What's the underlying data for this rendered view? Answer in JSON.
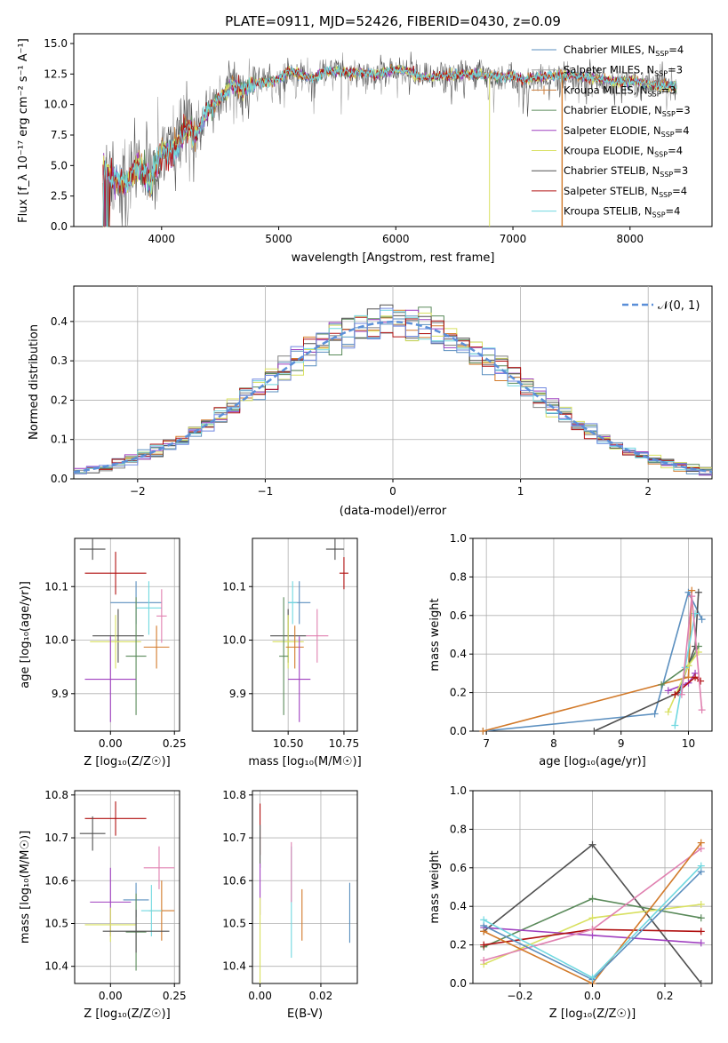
{
  "figure": {
    "title": "PLATE=0911, MJD=52426, FIBERID=0430, z=0.09"
  },
  "spectrum": {
    "xlabel": "wavelength [Angstrom, rest frame]",
    "ylabel": "Flux [f_λ 10⁻¹⁷ erg cm⁻² s⁻¹ A⁻¹]",
    "xlim": [
      3250,
      8700
    ],
    "ylim": [
      0,
      15.8
    ],
    "xticks": [
      4000,
      5000,
      6000,
      7000,
      8000
    ],
    "yticks": [
      "0.0",
      "2.5",
      "5.0",
      "7.5",
      "10.0",
      "12.5",
      "15.0"
    ],
    "legend": [
      {
        "label": "Chabrier MILES, N_SSP=4",
        "color": "#5b8fbf"
      },
      {
        "label": "Salpeter MILES, N_SSP=3",
        "color": "#a0a0a0"
      },
      {
        "label": "Kroupa MILES, N_SSP=3",
        "color": "#c87e3c"
      },
      {
        "label": "Chabrier ELODIE, N_SSP=3",
        "color": "#5a8a5a"
      },
      {
        "label": "Salpeter ELODIE, N_SSP=4",
        "color": "#a040c0"
      },
      {
        "label": "Kroupa ELODIE, N_SSP=4",
        "color": "#d8e060"
      },
      {
        "label": "Chabrier STELIB, N_SSP=3",
        "color": "#505050"
      },
      {
        "label": "Salpeter STELIB, N_SSP=4",
        "color": "#b01010"
      },
      {
        "label": "Kroupa STELIB, N_SSP=4",
        "color": "#70d8e0"
      }
    ],
    "shape": [
      [
        3500,
        4.6
      ],
      [
        3600,
        3.8
      ],
      [
        3700,
        3.5
      ],
      [
        3800,
        5.2
      ],
      [
        3900,
        3.5
      ],
      [
        4000,
        6.2
      ],
      [
        4100,
        6.0
      ],
      [
        4200,
        8.0
      ],
      [
        4300,
        7.6
      ],
      [
        4400,
        9.6
      ],
      [
        4500,
        10.6
      ],
      [
        4600,
        11.6
      ],
      [
        4700,
        11.2
      ],
      [
        4800,
        11.8
      ],
      [
        4900,
        11.8
      ],
      [
        5000,
        12.0
      ],
      [
        5100,
        12.8
      ],
      [
        5200,
        12.4
      ],
      [
        5300,
        12.2
      ],
      [
        5400,
        12.7
      ],
      [
        5500,
        12.8
      ],
      [
        5600,
        12.6
      ],
      [
        5700,
        12.6
      ],
      [
        5800,
        12.5
      ],
      [
        5900,
        12.6
      ],
      [
        6000,
        12.9
      ],
      [
        6100,
        12.8
      ],
      [
        6200,
        12.3
      ],
      [
        6300,
        12.2
      ],
      [
        6400,
        12.4
      ],
      [
        6500,
        12.4
      ],
      [
        6600,
        12.5
      ],
      [
        6700,
        12.5
      ],
      [
        6800,
        12.3
      ],
      [
        6900,
        12.2
      ],
      [
        7000,
        12.4
      ],
      [
        7100,
        12.0
      ],
      [
        7200,
        12.2
      ],
      [
        7300,
        12.3
      ],
      [
        7400,
        12.4
      ],
      [
        7500,
        12.4
      ],
      [
        7600,
        12.3
      ],
      [
        7700,
        12.2
      ],
      [
        7800,
        12.0
      ],
      [
        7900,
        11.8
      ],
      [
        8000,
        12.0
      ],
      [
        8100,
        11.8
      ],
      [
        8200,
        11.6
      ],
      [
        8300,
        11.5
      ],
      [
        8400,
        11.5
      ]
    ]
  },
  "residuals": {
    "xlabel": "(data-model)/error",
    "ylabel": "Normed distribution",
    "xlim": [
      -2.5,
      2.5
    ],
    "ylim": [
      0,
      0.49
    ],
    "xticks": [
      "−2",
      "−1",
      "0",
      "1",
      "2"
    ],
    "yticks": [
      "0.0",
      "0.1",
      "0.2",
      "0.3",
      "0.4"
    ],
    "legend_label": "𝒩(0, 1)",
    "colors": [
      "#5b8fbf",
      "#808080",
      "#d27a2a",
      "#5a8a5a",
      "#a040c0",
      "#d8e060",
      "#505050",
      "#b01010",
      "#70d8e0",
      "#7088e0"
    ]
  },
  "panels": {
    "age_vs_z": {
      "ylabel": "age  [log₁₀(age/yr)]",
      "xlabel": "Z [log₁₀(Z/Z☉)]",
      "xticks": [
        "0.00",
        "0.25"
      ],
      "yticks": [
        "9.9",
        "10.0",
        "10.1"
      ],
      "xlim": [
        -0.14,
        0.27
      ],
      "ylim": [
        9.83,
        10.19
      ],
      "points": [
        {
          "x": -0.07,
          "y": 10.17,
          "xe": 0.05,
          "ye": 0.02,
          "c": "#505050"
        },
        {
          "x": 0.02,
          "y": 10.125,
          "xe": 0.12,
          "ye": 0.04,
          "c": "#b01010"
        },
        {
          "x": 0.1,
          "y": 10.07,
          "xe": 0.1,
          "ye": 0.04,
          "c": "#5b8fbf"
        },
        {
          "x": 0.15,
          "y": 10.06,
          "xe": 0.05,
          "ye": 0.05,
          "c": "#70d8e0"
        },
        {
          "x": 0.2,
          "y": 10.045,
          "xe": 0.02,
          "ye": 0.05,
          "c": "#e080b0"
        },
        {
          "x": 0.03,
          "y": 10.008,
          "xe": 0.1,
          "ye": 0.05,
          "c": "#505050"
        },
        {
          "x": 0.02,
          "y": 9.997,
          "xe": 0.1,
          "ye": 0.05,
          "c": "#d8e060"
        },
        {
          "x": 0.18,
          "y": 9.987,
          "xe": 0.05,
          "ye": 0.04,
          "c": "#d27a2a"
        },
        {
          "x": 0.1,
          "y": 9.97,
          "xe": 0.04,
          "ye": 0.11,
          "c": "#5a8a5a"
        },
        {
          "x": 0.0,
          "y": 9.927,
          "xe": 0.1,
          "ye": 0.08,
          "c": "#a040c0"
        }
      ]
    },
    "age_vs_mass": {
      "xlabel": "mass [log₁₀(M/M☉)]",
      "xticks": [
        "10.50",
        "10.75"
      ],
      "yticks": [
        "9.9",
        "10.0",
        "10.1"
      ],
      "xlim": [
        10.34,
        10.81
      ],
      "ylim": [
        9.83,
        10.19
      ],
      "points": [
        {
          "x": 10.71,
          "y": 10.17,
          "xe": 0.04,
          "ye": 0.02,
          "c": "#505050"
        },
        {
          "x": 10.75,
          "y": 10.125,
          "xe": 0.02,
          "ye": 0.03,
          "c": "#b01010"
        },
        {
          "x": 10.55,
          "y": 10.07,
          "xe": 0.05,
          "ye": 0.04,
          "c": "#5b8fbf"
        },
        {
          "x": 10.52,
          "y": 10.07,
          "xe": 0.02,
          "ye": 0.04,
          "c": "#70d8e0"
        },
        {
          "x": 10.63,
          "y": 10.008,
          "xe": 0.05,
          "ye": 0.05,
          "c": "#e080b0"
        },
        {
          "x": 10.5,
          "y": 10.008,
          "xe": 0.08,
          "ye": 0.05,
          "c": "#505050"
        },
        {
          "x": 10.5,
          "y": 9.997,
          "xe": 0.07,
          "ye": 0.05,
          "c": "#d8e060"
        },
        {
          "x": 10.53,
          "y": 9.987,
          "xe": 0.04,
          "ye": 0.04,
          "c": "#d27a2a"
        },
        {
          "x": 10.48,
          "y": 9.97,
          "xe": 0.02,
          "ye": 0.11,
          "c": "#5a8a5a"
        },
        {
          "x": 10.55,
          "y": 9.927,
          "xe": 0.05,
          "ye": 0.08,
          "c": "#a040c0"
        }
      ]
    },
    "weight_vs_age": {
      "ylabel": "mass weight",
      "xlabel": "age  [log₁₀(age/yr)]",
      "xticks": [
        "7",
        "8",
        "9",
        "10"
      ],
      "yticks": [
        "0.0",
        "0.2",
        "0.4",
        "0.6",
        "0.8",
        "1.0"
      ],
      "xlim": [
        6.8,
        10.35
      ],
      "ylim": [
        0,
        1
      ],
      "series": [
        {
          "c": "#5b8fbf",
          "pts": [
            [
              6.95,
              0.0
            ],
            [
              9.5,
              0.09
            ],
            [
              10.0,
              0.72
            ],
            [
              10.2,
              0.58
            ]
          ]
        },
        {
          "c": "#d27a2a",
          "pts": [
            [
              6.95,
              0.0
            ],
            [
              10.0,
              0.28
            ],
            [
              10.05,
              0.73
            ]
          ]
        },
        {
          "c": "#505050",
          "pts": [
            [
              8.6,
              0.0
            ],
            [
              9.85,
              0.2
            ],
            [
              10.1,
              0.44
            ],
            [
              10.15,
              0.72
            ]
          ]
        },
        {
          "c": "#5a8a5a",
          "pts": [
            [
              9.6,
              0.24
            ],
            [
              10.0,
              0.34
            ],
            [
              10.15,
              0.44
            ]
          ]
        },
        {
          "c": "#a040c0",
          "pts": [
            [
              9.7,
              0.21
            ],
            [
              10.0,
              0.25
            ],
            [
              10.1,
              0.3
            ]
          ]
        },
        {
          "c": "#d8e060",
          "pts": [
            [
              9.7,
              0.1
            ],
            [
              10.0,
              0.34
            ],
            [
              10.15,
              0.41
            ]
          ]
        },
        {
          "c": "#b01010",
          "pts": [
            [
              9.8,
              0.19
            ],
            [
              10.1,
              0.28
            ],
            [
              10.18,
              0.26
            ]
          ]
        },
        {
          "c": "#70d8e0",
          "pts": [
            [
              9.8,
              0.03
            ],
            [
              9.95,
              0.33
            ],
            [
              10.1,
              0.61
            ]
          ]
        },
        {
          "c": "#e080b0",
          "pts": [
            [
              9.9,
              0.19
            ],
            [
              10.05,
              0.7
            ],
            [
              10.2,
              0.11
            ]
          ]
        }
      ]
    },
    "mass_vs_z": {
      "ylabel": "mass [log₁₀(M/M☉)]",
      "xlabel": "Z [log₁₀(Z/Z☉)]",
      "xticks": [
        "0.00",
        "0.25"
      ],
      "yticks": [
        "10.4",
        "10.5",
        "10.6",
        "10.7",
        "10.8"
      ],
      "xlim": [
        -0.14,
        0.27
      ],
      "ylim": [
        10.36,
        10.81
      ],
      "points": [
        {
          "x": 0.02,
          "y": 10.745,
          "xe": 0.12,
          "ye": 0.04,
          "c": "#b01010"
        },
        {
          "x": -0.07,
          "y": 10.71,
          "xe": 0.05,
          "ye": 0.04,
          "c": "#505050"
        },
        {
          "x": 0.19,
          "y": 10.63,
          "xe": 0.06,
          "ye": 0.05,
          "c": "#e080b0"
        },
        {
          "x": 0.0,
          "y": 10.55,
          "xe": 0.08,
          "ye": 0.08,
          "c": "#a040c0"
        },
        {
          "x": 0.1,
          "y": 10.555,
          "xe": 0.05,
          "ye": 0.04,
          "c": "#5b8fbf"
        },
        {
          "x": 0.2,
          "y": 10.53,
          "xe": 0.05,
          "ye": 0.07,
          "c": "#d27a2a"
        },
        {
          "x": 0.16,
          "y": 10.53,
          "xe": 0.04,
          "ye": 0.06,
          "c": "#70d8e0"
        },
        {
          "x": 0.1,
          "y": 10.48,
          "xe": 0.04,
          "ye": 0.09,
          "c": "#5a8a5a"
        },
        {
          "x": 0.0,
          "y": 10.497,
          "xe": 0.1,
          "ye": 0.04,
          "c": "#d8e060"
        },
        {
          "x": 0.1,
          "y": 10.482,
          "xe": 0.13,
          "ye": 0.05,
          "c": "#505050"
        }
      ]
    },
    "mass_vs_ebv": {
      "xlabel": "E(B-V)",
      "xticks": [
        "0.00",
        "0.02"
      ],
      "yticks": [
        "10.4",
        "10.5",
        "10.6",
        "10.7",
        "10.8"
      ],
      "xlim": [
        -0.0025,
        0.032
      ],
      "ylim": [
        10.36,
        10.81
      ],
      "points": [
        {
          "x": 0.0,
          "y": 10.72,
          "xe": 0,
          "ye": 0.06,
          "c": "#b01010"
        },
        {
          "x": 0.0,
          "y": 10.68,
          "xe": 0,
          "ye": 0.05,
          "c": "#505050"
        },
        {
          "x": 0.0,
          "y": 10.58,
          "xe": 0,
          "ye": 0.06,
          "c": "#a040c0"
        },
        {
          "x": 0.0,
          "y": 10.46,
          "xe": 0,
          "ye": 0.1,
          "c": "#d8e060"
        },
        {
          "x": 0.0103,
          "y": 10.55,
          "xe": 0,
          "ye": 0.13,
          "c": "#70d8e0"
        },
        {
          "x": 0.0103,
          "y": 10.62,
          "xe": 0,
          "ye": 0.07,
          "c": "#e080b0"
        },
        {
          "x": 0.0138,
          "y": 10.52,
          "xe": 0,
          "ye": 0.06,
          "c": "#d27a2a"
        },
        {
          "x": 0.0295,
          "y": 10.525,
          "xe": 0,
          "ye": 0.07,
          "c": "#5b8fbf"
        }
      ]
    },
    "weight_vs_z": {
      "ylabel": "mass weight",
      "xlabel": "Z [log₁₀(Z/Z☉)]",
      "xticks": [
        "−0.2",
        "0.0",
        "0.2"
      ],
      "yticks": [
        "0.0",
        "0.2",
        "0.4",
        "0.6",
        "0.8",
        "1.0"
      ],
      "xlim": [
        -0.33,
        0.33
      ],
      "ylim": [
        0,
        1
      ],
      "series": [
        {
          "c": "#505050",
          "pts": [
            [
              -0.3,
              0.27
            ],
            [
              0.0,
              0.72
            ],
            [
              0.3,
              0.0
            ]
          ]
        },
        {
          "c": "#5a8a5a",
          "pts": [
            [
              -0.3,
              0.19
            ],
            [
              0.0,
              0.44
            ],
            [
              0.3,
              0.34
            ]
          ]
        },
        {
          "c": "#d8e060",
          "pts": [
            [
              -0.3,
              0.1
            ],
            [
              0.0,
              0.34
            ],
            [
              0.3,
              0.41
            ]
          ]
        },
        {
          "c": "#a040c0",
          "pts": [
            [
              -0.3,
              0.29
            ],
            [
              0.0,
              0.25
            ],
            [
              0.3,
              0.21
            ]
          ]
        },
        {
          "c": "#b01010",
          "pts": [
            [
              -0.3,
              0.2
            ],
            [
              0.0,
              0.28
            ],
            [
              0.3,
              0.27
            ]
          ]
        },
        {
          "c": "#e080b0",
          "pts": [
            [
              -0.3,
              0.12
            ],
            [
              0.0,
              0.28
            ],
            [
              0.3,
              0.7
            ]
          ]
        },
        {
          "c": "#d27a2a",
          "pts": [
            [
              -0.3,
              0.27
            ],
            [
              0.0,
              0.0
            ],
            [
              0.3,
              0.73
            ]
          ]
        },
        {
          "c": "#5b8fbf",
          "pts": [
            [
              -0.3,
              0.3
            ],
            [
              0.0,
              0.02
            ],
            [
              0.3,
              0.58
            ]
          ]
        },
        {
          "c": "#70d8e0",
          "pts": [
            [
              -0.3,
              0.33
            ],
            [
              0.0,
              0.03
            ],
            [
              0.3,
              0.61
            ]
          ]
        }
      ]
    }
  }
}
